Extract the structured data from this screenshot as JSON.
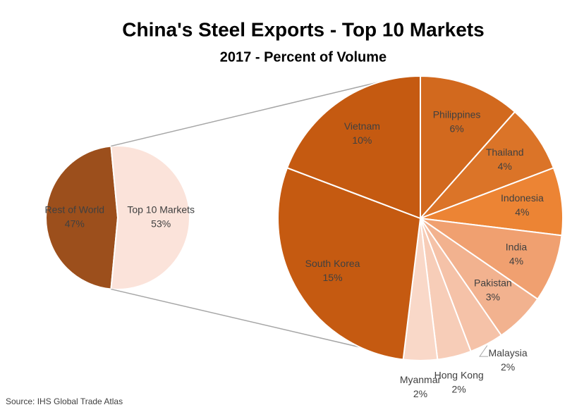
{
  "chart_data": {
    "type": "pie-of-pie",
    "title": "China's Steel Exports - Top 10 Markets",
    "subtitle": "2017 - Percent of Volume",
    "source": "Source: IHS Global Trade Atlas",
    "categories": [
      "Rest of World",
      "Top 10 Markets"
    ],
    "values": [
      47,
      53
    ],
    "value_labels": [
      "47%",
      "53%"
    ],
    "colors": [
      "#9c4f1c",
      "#fbe3da"
    ],
    "detail": {
      "categories": [
        "Philippines",
        "Thailand",
        "Indonesia",
        "India",
        "Pakistan",
        "Malaysia",
        "Hong Kong",
        "Myanmar",
        "South Korea",
        "Vietnam"
      ],
      "values": [
        6,
        4,
        4,
        4,
        3,
        2,
        2,
        2,
        15,
        10
      ],
      "value_labels": [
        "6%",
        "4%",
        "4%",
        "4%",
        "3%",
        "2%",
        "2%",
        "2%",
        "15%",
        "10%"
      ],
      "colors": [
        "#d2691e",
        "#db7428",
        "#ec8434",
        "#f0a070",
        "#f2b28f",
        "#f5c2a8",
        "#f7cdb8",
        "#f9d8c8",
        "#c55a11",
        "#c55a11"
      ]
    }
  }
}
